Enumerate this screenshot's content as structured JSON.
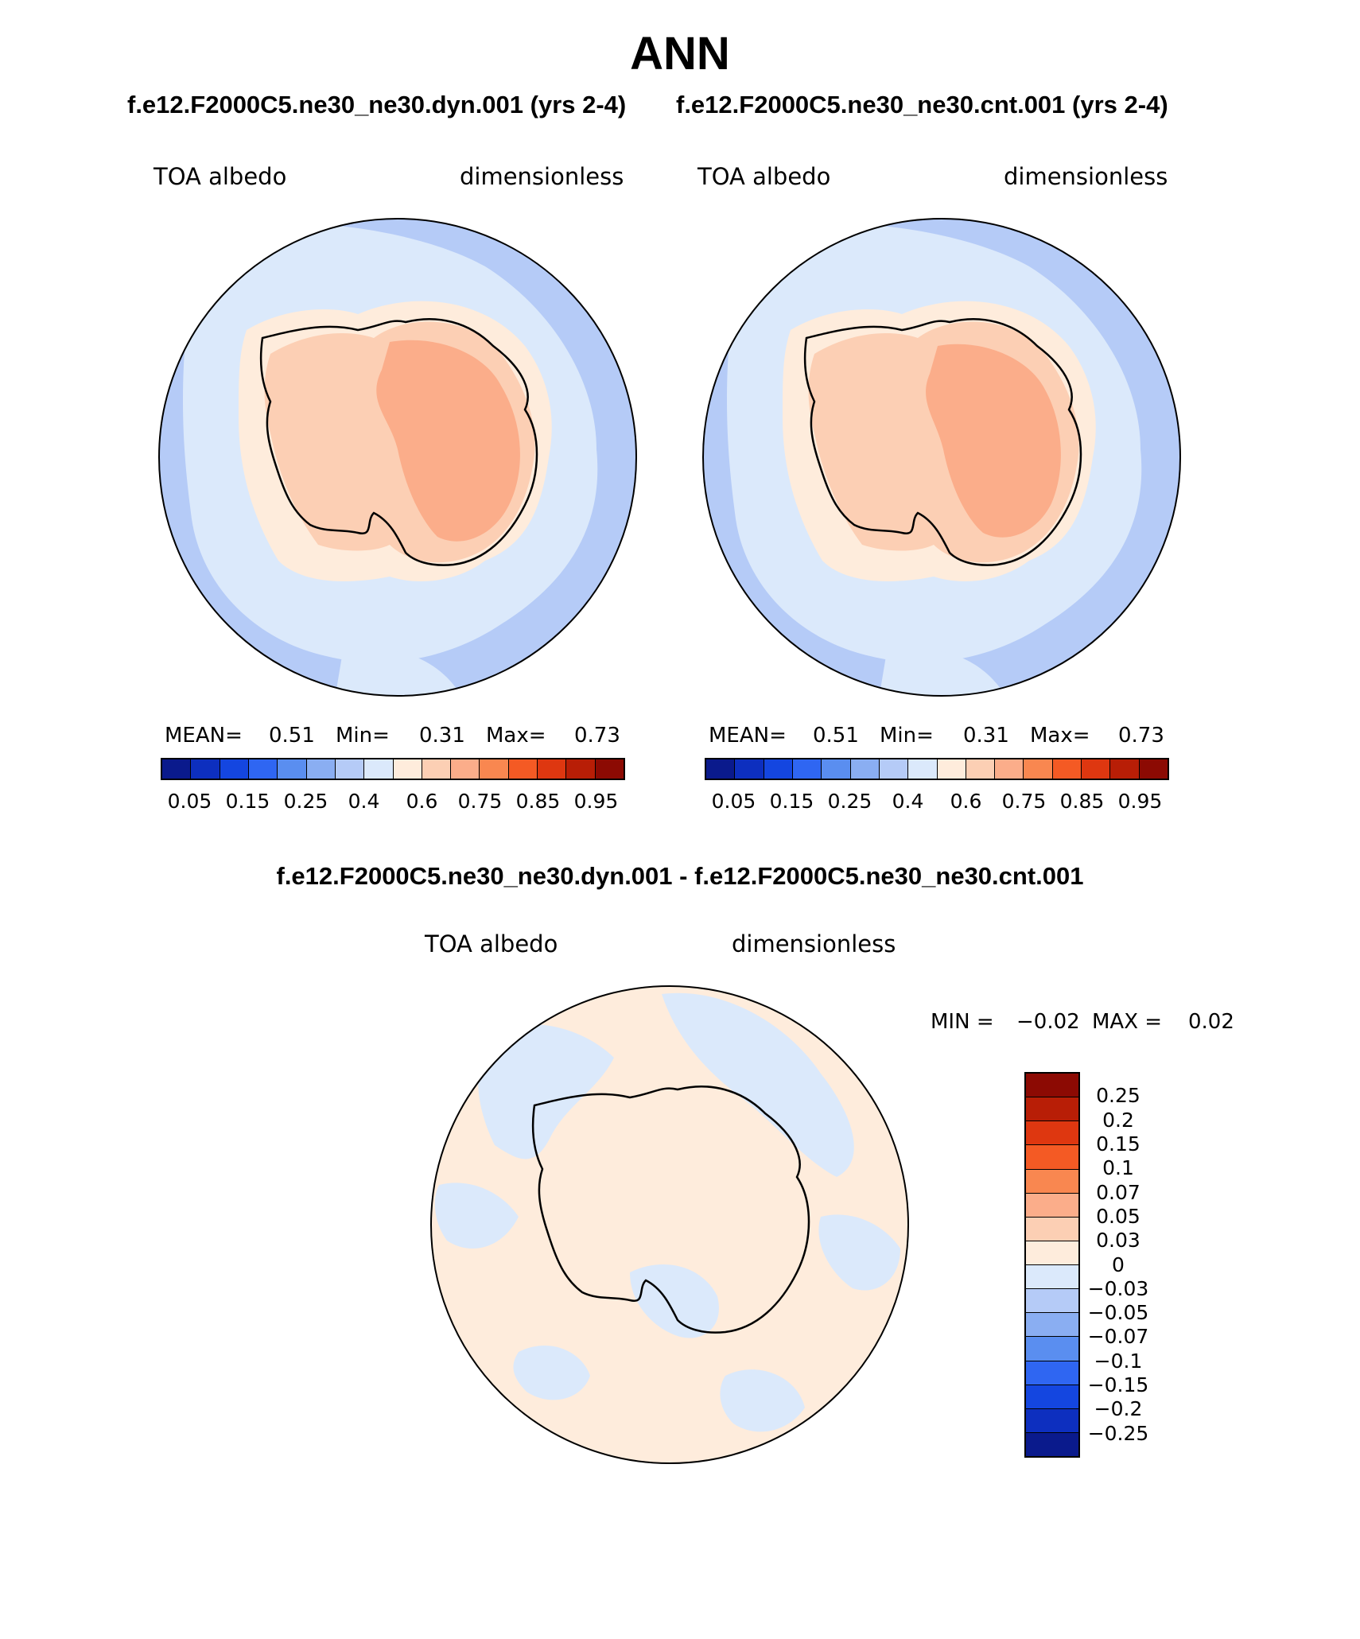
{
  "title": "ANN",
  "subtitle_left": "f.e12.F2000C5.ne30_ne30.dyn.001 (yrs 2-4)",
  "subtitle_right": "f.e12.F2000C5.ne30_ne30.cnt.001 (yrs 2-4)",
  "diff_title": "f.e12.F2000C5.ne30_ne30.dyn.001 - f.e12.F2000C5.ne30_ne30.cnt.001",
  "panels": [
    {
      "variable": "TOA albedo",
      "units": "dimensionless",
      "mean_label": "MEAN=",
      "mean_value": "0.51",
      "min_label": "Min=",
      "min_value": "0.31",
      "max_label": "Max=",
      "max_value": "0.73"
    },
    {
      "variable": "TOA albedo",
      "units": "dimensionless",
      "mean_label": "MEAN=",
      "mean_value": "0.51",
      "min_label": "Min=",
      "min_value": "0.31",
      "max_label": "Max=",
      "max_value": "0.73"
    }
  ],
  "diff_panel": {
    "variable": "TOA albedo",
    "units": "dimensionless",
    "min_label": "MIN =",
    "min_value": "−0.02",
    "max_label": "MAX =",
    "max_value": "0.02"
  },
  "colorbar_main": {
    "colors": [
      "#0a1a8c",
      "#0d2fbf",
      "#1446e0",
      "#2f66f2",
      "#5a8ef0",
      "#8aaef2",
      "#b5cbf7",
      "#dbe9fb",
      "#feecdc",
      "#fccfb4",
      "#fbad8a",
      "#f98750",
      "#f45a24",
      "#de3710",
      "#b81e06",
      "#8c0a03"
    ],
    "labels": [
      "0.05",
      "0.15",
      "0.25",
      "0.4",
      "0.6",
      "0.75",
      "0.85",
      "0.95"
    ]
  },
  "colorbar_diff": {
    "colors": [
      "#8c0a03",
      "#b81e06",
      "#de3710",
      "#f45a24",
      "#f98750",
      "#fbad8a",
      "#fccfb4",
      "#feecdc",
      "#dbe9fb",
      "#b5cbf7",
      "#8aaef2",
      "#5a8ef0",
      "#2f66f2",
      "#1446e0",
      "#0d2fbf",
      "#0a1a8c"
    ],
    "labels": [
      "0.25",
      "0.2",
      "0.15",
      "0.1",
      "0.07",
      "0.05",
      "0.03",
      "0",
      "−0.03",
      "−0.05",
      "−0.07",
      "−0.1",
      "−0.15",
      "−0.2",
      "−0.25"
    ]
  },
  "map_colors": {
    "ocean_outer": "#b5cbf7",
    "ocean_inner": "#dbe9fb",
    "sea_ice_edge": "#feecdc",
    "coast_land": "#fccfb4",
    "plateau": "#fbad8a",
    "diff_positive": "#feecdc",
    "diff_negative": "#dbe9fb"
  }
}
